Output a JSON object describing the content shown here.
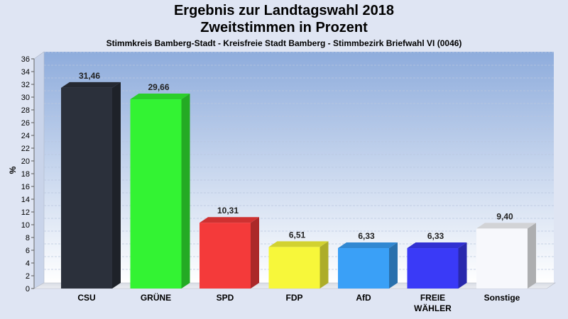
{
  "chart_data": {
    "type": "bar",
    "title": "Ergebnis zur Landtagswahl 2018",
    "title2": "Zweitstimmen in Prozent",
    "subtitle": "Stimmkreis Bamberg-Stadt - Kreisfreie Stadt Bamberg - Stimmbezirk Briefwahl VI (0046)",
    "ylabel": "%",
    "xlabel": "",
    "ylim": [
      0,
      36
    ],
    "ytick_step": 2,
    "categories": [
      [
        "CSU"
      ],
      [
        "GRÜNE"
      ],
      [
        "SPD"
      ],
      [
        "FDP"
      ],
      [
        "AfD"
      ],
      [
        "FREIE",
        "WÄHLER"
      ],
      [
        "Sonstige"
      ]
    ],
    "values": [
      31.46,
      29.66,
      10.31,
      6.51,
      6.33,
      6.33,
      9.4
    ],
    "value_labels": [
      "31,46",
      "29,66",
      "10,31",
      "6,51",
      "6,33",
      "6,33",
      "9,40"
    ],
    "colors": [
      "#2b303b",
      "#33f333",
      "#f43a3a",
      "#f7f73a",
      "#3aa0f7",
      "#3a3af7",
      "#f7f8fc"
    ],
    "grid": true,
    "legend": "none"
  }
}
